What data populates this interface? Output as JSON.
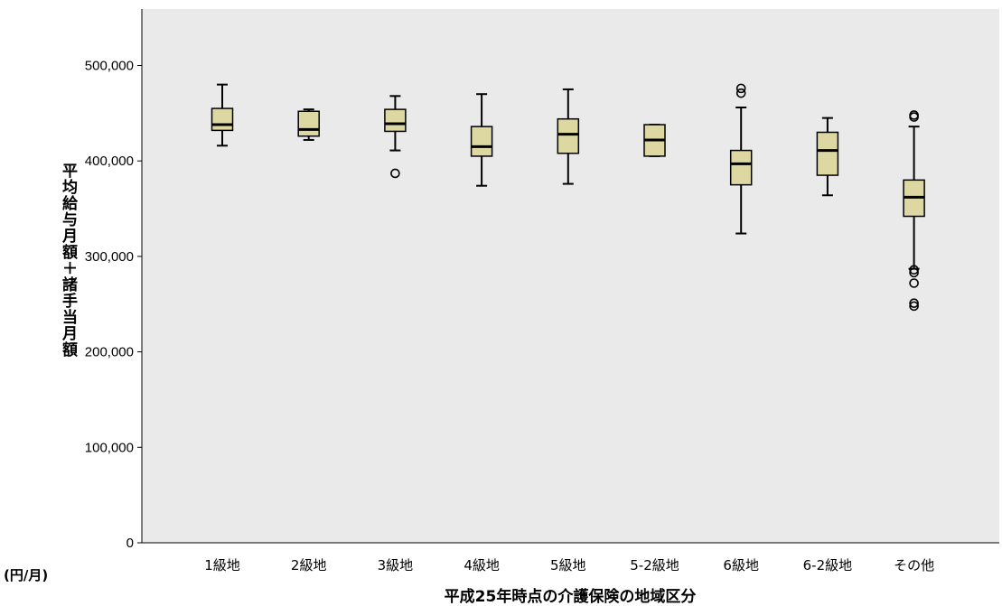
{
  "chart_data": {
    "type": "boxplot",
    "xlabel": "平成25年時点の介護保険の地域区分",
    "ylabel": "平均給与月額＋諸手当月額",
    "unit_label": "(円/月)",
    "ylim": [
      0,
      560000
    ],
    "yticks": [
      0,
      100000,
      200000,
      300000,
      400000,
      500000
    ],
    "ytick_labels": [
      "0",
      "100,000",
      "200,000",
      "300,000",
      "400,000",
      "500,000"
    ],
    "grid": false,
    "colors": {
      "plot_bg": "#eaeaea",
      "box_fill": "#ddd7a2",
      "stroke": "#000000"
    },
    "categories": [
      "1級地",
      "2級地",
      "3級地",
      "4級地",
      "5級地",
      "5-2級地",
      "6級地",
      "6-2級地",
      "その他"
    ],
    "boxes": [
      {
        "whisker_low": 416000,
        "q1": 432000,
        "median": 438000,
        "q3": 455000,
        "whisker_high": 480000,
        "outliers": []
      },
      {
        "whisker_low": 422000,
        "q1": 426000,
        "median": 433000,
        "q3": 452000,
        "whisker_high": 454000,
        "outliers": []
      },
      {
        "whisker_low": 411000,
        "q1": 431000,
        "median": 439000,
        "q3": 454000,
        "whisker_high": 468000,
        "outliers": [
          387000
        ]
      },
      {
        "whisker_low": 374000,
        "q1": 405000,
        "median": 415000,
        "q3": 436000,
        "whisker_high": 470000,
        "outliers": []
      },
      {
        "whisker_low": 376000,
        "q1": 408000,
        "median": 428000,
        "q3": 444000,
        "whisker_high": 475000,
        "outliers": []
      },
      {
        "whisker_low": 405000,
        "q1": 405000,
        "median": 422000,
        "q3": 438000,
        "whisker_high": 438000,
        "outliers": []
      },
      {
        "whisker_low": 324000,
        "q1": 375000,
        "median": 397000,
        "q3": 411000,
        "whisker_high": 456000,
        "outliers": [
          471000,
          476000
        ]
      },
      {
        "whisker_low": 364000,
        "q1": 385000,
        "median": 411000,
        "q3": 430000,
        "whisker_high": 445000,
        "outliers": []
      },
      {
        "whisker_low": 287000,
        "q1": 342000,
        "median": 362000,
        "q3": 380000,
        "whisker_high": 436000,
        "outliers": [
          448000,
          446000,
          286000,
          283000,
          272000,
          251000,
          248000
        ]
      }
    ]
  }
}
